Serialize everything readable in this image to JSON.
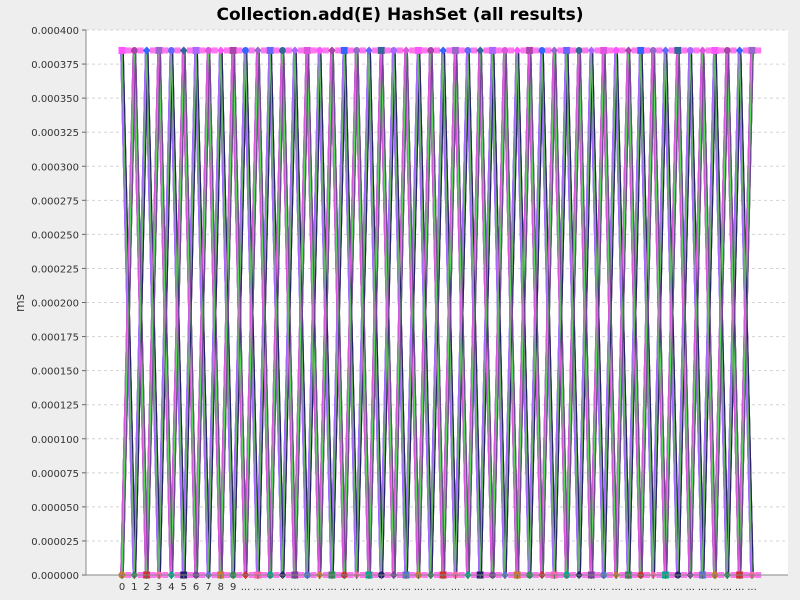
{
  "chart_data": {
    "type": "line",
    "title": "Collection.add(E) HashSet (all results)",
    "xlabel": "",
    "ylabel": "ms",
    "ylim": [
      0,
      0.0004
    ],
    "yticks": [
      "0.000000",
      "0.000025",
      "0.000050",
      "0.000075",
      "0.000100",
      "0.000125",
      "0.000150",
      "0.000175",
      "0.000200",
      "0.000225",
      "0.000250",
      "0.000275",
      "0.000300",
      "0.000325",
      "0.000350",
      "0.000375",
      "0.000400"
    ],
    "categories": [
      "0",
      "1",
      "2",
      "3",
      "4",
      "5",
      "6",
      "7",
      "8",
      "9",
      "...",
      "...",
      "...",
      "...",
      "...",
      "...",
      "...",
      "...",
      "...",
      "...",
      "...",
      "...",
      "...",
      "...",
      "...",
      "...",
      "...",
      "...",
      "...",
      "...",
      "...",
      "...",
      "...",
      "...",
      "...",
      "...",
      "...",
      "...",
      "...",
      "...",
      "...",
      "...",
      "...",
      "...",
      "...",
      "...",
      "...",
      "...",
      "...",
      "...",
      "...",
      "..."
    ],
    "low_value": 0.0,
    "high_value": 0.000385,
    "grid": true,
    "legend": "none",
    "series_colors": [
      "#ff55ff",
      "#7fbf3f",
      "#5577cc",
      "#aa44aa",
      "#44aaaa",
      "#cc7733",
      "#3366ff",
      "#cc4499",
      "#2e8b57",
      "#9966cc",
      "#33cc66",
      "#cc3333",
      "#6666ff",
      "#99cc33",
      "#ff66aa",
      "#336699",
      "#886622",
      "#00aa88",
      "#aa66ff",
      "#55dd55",
      "#222266",
      "#dd55dd",
      "#66bb66",
      "#774499"
    ]
  }
}
